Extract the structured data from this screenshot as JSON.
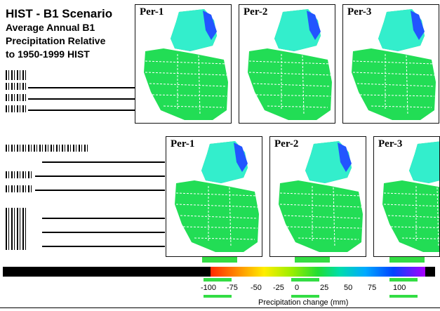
{
  "title": {
    "line1": "HIST - B1 Scenario",
    "line2": "Average Annual B1",
    "line3": "Precipitation Relative",
    "line4": "to 1950-1999 HIST"
  },
  "panels": [
    {
      "label": "Per-1",
      "color": "#22dd44"
    },
    {
      "label": "Per-2",
      "color": "#22dd44"
    },
    {
      "label": "Per-3",
      "color": "#22dd44"
    },
    {
      "label": "Per-1",
      "color": "#22dd44"
    },
    {
      "label": "Per-2",
      "color": "#22dd44"
    },
    {
      "label": "Per-3",
      "color": "#22dd44"
    }
  ],
  "colorbar": {
    "ticks": [
      "-100",
      "-75",
      "-50",
      "-25",
      "0",
      "25",
      "50",
      "75",
      "100"
    ],
    "label": "Precipitation change (mm)"
  }
}
